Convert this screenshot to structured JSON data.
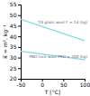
{
  "chart_data": {
    "type": "line",
    "xlabel": "T [°C]",
    "ylabel": "κ̅ = m², kg⁻¹",
    "x": [
      -50,
      100
    ],
    "series": [
      {
        "color": "#85d5e8",
        "values": [
          48,
          38
        ]
      },
      {
        "color": "#85d5e8",
        "values": [
          33,
          29
        ]
      }
    ],
    "annotations": [
      {
        "text": "TiS glass wool F = 1d (kg)",
        "x": -10
      },
      {
        "text": "PBD rock wool PRD = 200 (kg)",
        "x": -30
      }
    ],
    "xlim": [
      -50,
      100
    ],
    "ylim": [
      20,
      55
    ],
    "xticks": [
      -50,
      0,
      50,
      100
    ],
    "yticks": [
      20,
      25,
      30,
      35,
      40,
      45,
      50,
      55
    ],
    "grid": false
  }
}
